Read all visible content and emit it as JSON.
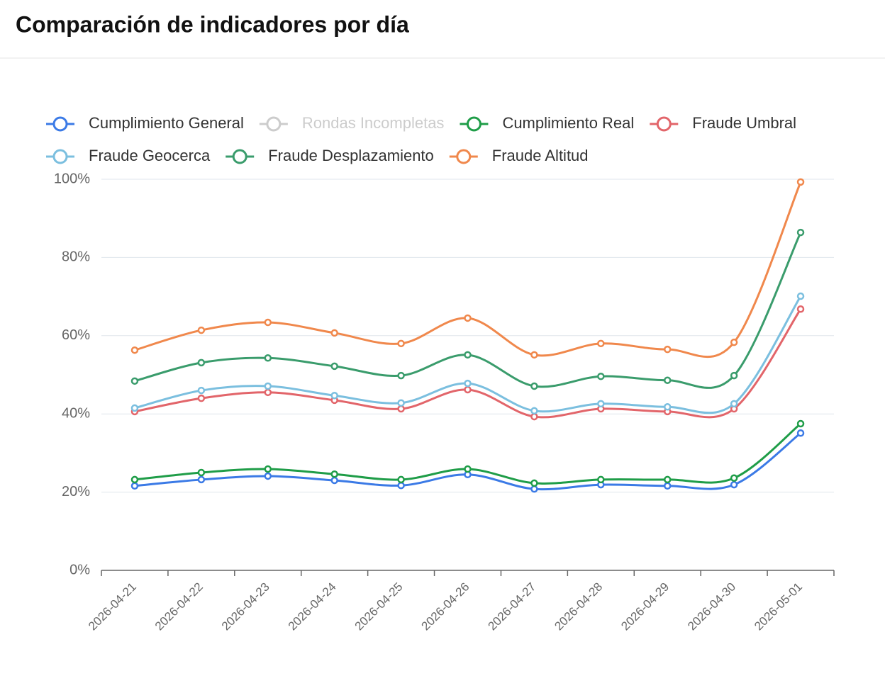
{
  "chart_data": {
    "type": "line",
    "title": "Comparación de indicadores por día",
    "categories": [
      "2026-04-21",
      "2026-04-22",
      "2026-04-23",
      "2026-04-24",
      "2026-04-25",
      "2026-04-26",
      "2026-04-27",
      "2026-04-28",
      "2026-04-29",
      "2026-04-30",
      "2026-05-01"
    ],
    "series": [
      {
        "name": "Cumplimiento General",
        "color": "#3b7ae6",
        "visible": true,
        "values": [
          21.6,
          23.2,
          24.1,
          23.0,
          21.7,
          24.5,
          20.8,
          21.9,
          21.6,
          21.9,
          35.1
        ]
      },
      {
        "name": "Rondas Incompletas",
        "color": "#cccccc",
        "visible": false,
        "values": [
          null,
          null,
          null,
          null,
          null,
          null,
          null,
          null,
          null,
          null,
          null
        ]
      },
      {
        "name": "Cumplimiento Real",
        "color": "#1f9d48",
        "visible": true,
        "values": [
          23.2,
          25.0,
          25.9,
          24.6,
          23.2,
          25.9,
          22.3,
          23.2,
          23.2,
          23.6,
          37.5
        ]
      },
      {
        "name": "Fraude Umbral",
        "color": "#e2656a",
        "visible": true,
        "values": [
          40.6,
          44.0,
          45.5,
          43.5,
          41.3,
          46.2,
          39.3,
          41.3,
          40.6,
          41.3,
          66.8
        ]
      },
      {
        "name": "Fraude Geocerca",
        "color": "#7bbfdf",
        "visible": true,
        "values": [
          41.5,
          46.0,
          47.1,
          44.7,
          42.8,
          47.8,
          40.8,
          42.6,
          41.8,
          42.6,
          70.1
        ]
      },
      {
        "name": "Fraude Desplazamiento",
        "color": "#3a9c6c",
        "visible": true,
        "values": [
          48.4,
          53.1,
          54.3,
          52.2,
          49.8,
          55.1,
          47.1,
          49.6,
          48.6,
          49.8,
          86.4
        ]
      },
      {
        "name": "Fraude Altitud",
        "color": "#f0884c",
        "visible": true,
        "values": [
          56.3,
          61.4,
          63.4,
          60.7,
          58.0,
          64.5,
          55.1,
          58.0,
          56.5,
          58.3,
          99.3
        ]
      }
    ],
    "ylim": [
      0,
      100
    ],
    "yticks": [
      {
        "value": 0,
        "label": "0%"
      },
      {
        "value": 20,
        "label": "20%"
      },
      {
        "value": 40,
        "label": "40%"
      },
      {
        "value": 60,
        "label": "60%"
      },
      {
        "value": 80,
        "label": "80%"
      },
      {
        "value": 100,
        "label": "100%"
      }
    ],
    "grid": true,
    "legend_position": "top",
    "smooth": true
  }
}
